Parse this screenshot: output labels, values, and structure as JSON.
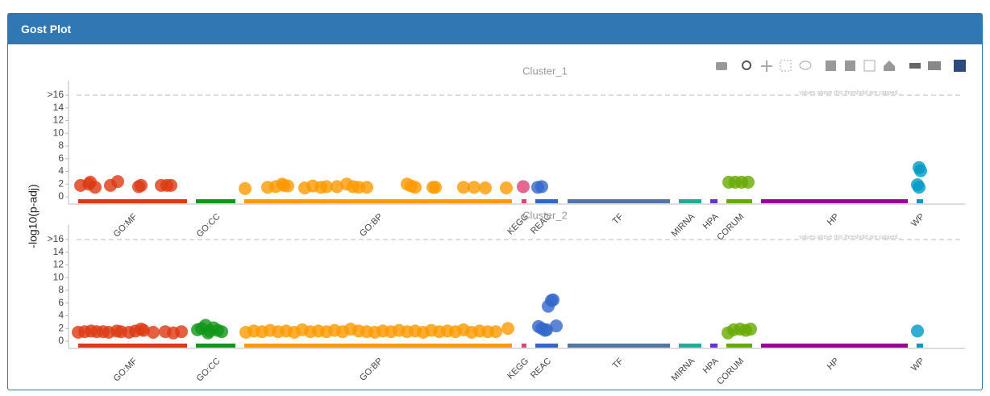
{
  "header": {
    "title": "Gost Plot"
  },
  "chart_data": [
    {
      "type": "manhattan",
      "title": "Cluster_1",
      "ylabel": "-log10(p-adj)",
      "threshold_label": "values above this threshold are capped...",
      "xlim": [
        0,
        1112
      ],
      "ylim": [
        -1.14,
        18.29
      ],
      "yticks": [
        0,
        2,
        4,
        6,
        8,
        10,
        12,
        14,
        {
          "value": 16,
          "label": ">16"
        }
      ],
      "sources": [
        {
          "name": "GO:MF",
          "color": "#dc3912",
          "range": [
            12,
            147
          ],
          "x": [
            15,
            25,
            33,
            27,
            52,
            61,
            87,
            90,
            115,
            122,
            127
          ],
          "values": [
            1.8,
            2,
            1.5,
            2.3,
            1.8,
            2.4,
            1.6,
            1.8,
            1.8,
            1.8,
            1.8
          ]
        },
        {
          "name": "GO:CC",
          "color": "#109618",
          "range": [
            158,
            207
          ],
          "x": [],
          "values": []
        },
        {
          "name": "GO:BP",
          "color": "#ff9900",
          "range": [
            218,
            550
          ],
          "x": [
            219,
            247,
            257,
            265,
            267,
            272,
            293,
            303,
            313,
            320,
            333,
            345,
            353,
            360,
            370,
            420,
            425,
            430,
            452,
            455,
            490,
            503,
            517,
            543
          ],
          "values": [
            1.3,
            1.5,
            1.6,
            2,
            1.8,
            1.7,
            1.4,
            1.7,
            1.5,
            1.6,
            1.6,
            2,
            1.6,
            1.5,
            1.5,
            2,
            1.7,
            1.5,
            1.5,
            1.5,
            1.5,
            1.5,
            1.4,
            1.4
          ]
        },
        {
          "name": "KEGG",
          "color": "#dd4477",
          "range": [
            562,
            568
          ],
          "x": [
            564
          ],
          "values": [
            1.6
          ]
        },
        {
          "name": "REAC",
          "color": "#3366cc",
          "range": [
            579,
            607
          ],
          "x": [
            582,
            587
          ],
          "values": [
            1.5,
            1.6
          ]
        },
        {
          "name": "TF",
          "color": "#5574a6",
          "range": [
            619,
            746
          ],
          "x": [],
          "values": []
        },
        {
          "name": "MIRNA",
          "color": "#22aa99",
          "range": [
            757,
            785
          ],
          "x": [],
          "values": []
        },
        {
          "name": "HPA",
          "color": "#6633cc",
          "range": [
            796,
            805
          ],
          "x": [],
          "values": []
        },
        {
          "name": "CORUM",
          "color": "#66aa00",
          "range": [
            816,
            848
          ],
          "x": [
            819,
            827,
            835,
            843
          ],
          "values": [
            2.3,
            2.3,
            2.3,
            2.3
          ]
        },
        {
          "name": "HP",
          "color": "#990099",
          "range": [
            859,
            1041
          ],
          "x": [],
          "values": []
        },
        {
          "name": "WP",
          "color": "#0099c6",
          "range": [
            1052,
            1060
          ],
          "x": [
            1055,
            1057,
            1053,
            1055
          ],
          "values": [
            4.6,
            4.1,
            1.9,
            1.5
          ]
        }
      ]
    },
    {
      "type": "manhattan",
      "title": "Cluster_2",
      "threshold_label": "values above this threshold are capped...",
      "xlim": [
        0,
        1112
      ],
      "ylim": [
        -1.14,
        18.29
      ],
      "yticks": [
        0,
        2,
        4,
        6,
        8,
        10,
        12,
        14,
        {
          "value": 16,
          "label": ">16"
        }
      ],
      "sources": [
        {
          "name": "GO:MF",
          "color": "#dc3912",
          "range": [
            12,
            147
          ],
          "x": [
            12,
            20,
            28,
            35,
            43,
            50,
            60,
            65,
            75,
            83,
            90,
            93,
            105,
            120,
            130,
            140
          ],
          "values": [
            1.4,
            1.5,
            1.6,
            1.5,
            1.5,
            1.4,
            1.6,
            1.5,
            1.4,
            1.6,
            1.9,
            1.7,
            1.4,
            1.5,
            1.3,
            1.5
          ]
        },
        {
          "name": "GO:CC",
          "color": "#109618",
          "range": [
            158,
            207
          ],
          "x": [
            160,
            165,
            170,
            175,
            180,
            185,
            190,
            173
          ],
          "values": [
            1.8,
            2,
            2.5,
            1.6,
            2.1,
            1.7,
            1.5,
            1.3
          ]
        },
        {
          "name": "GO:BP",
          "color": "#ff9900",
          "range": [
            218,
            550
          ],
          "x": [
            220,
            230,
            240,
            250,
            260,
            270,
            280,
            290,
            300,
            310,
            320,
            330,
            340,
            350,
            360,
            370,
            380,
            390,
            400,
            410,
            420,
            430,
            440,
            450,
            460,
            470,
            480,
            490,
            500,
            510,
            520,
            530,
            545
          ],
          "values": [
            1.4,
            1.6,
            1.5,
            1.7,
            1.5,
            1.6,
            1.4,
            1.8,
            1.5,
            1.6,
            1.5,
            1.7,
            1.5,
            1.9,
            1.6,
            1.5,
            1.4,
            1.6,
            1.5,
            1.7,
            1.5,
            1.6,
            1.4,
            1.7,
            1.5,
            1.6,
            1.5,
            1.8,
            1.4,
            1.6,
            1.5,
            1.5,
            2
          ]
        },
        {
          "name": "KEGG",
          "color": "#dd4477",
          "range": [
            562,
            568
          ],
          "x": [],
          "values": []
        },
        {
          "name": "REAC",
          "color": "#3366cc",
          "range": [
            579,
            607
          ],
          "x": [
            583,
            587,
            591,
            595,
            599,
            601,
            605,
            593
          ],
          "values": [
            2.3,
            2,
            1.7,
            5.5,
            6.4,
            6.5,
            2.4,
            1.8
          ]
        },
        {
          "name": "TF",
          "color": "#5574a6",
          "range": [
            619,
            746
          ],
          "x": [],
          "values": []
        },
        {
          "name": "MIRNA",
          "color": "#22aa99",
          "range": [
            757,
            785
          ],
          "x": [],
          "values": []
        },
        {
          "name": "HPA",
          "color": "#6633cc",
          "range": [
            796,
            805
          ],
          "x": [],
          "values": []
        },
        {
          "name": "CORUM",
          "color": "#66aa00",
          "range": [
            816,
            848
          ],
          "x": [
            818,
            825,
            833,
            840,
            846
          ],
          "values": [
            1.3,
            1.8,
            1.9,
            1.7,
            1.9
          ]
        },
        {
          "name": "HP",
          "color": "#990099",
          "range": [
            859,
            1041
          ],
          "x": [],
          "values": []
        },
        {
          "name": "WP",
          "color": "#0099c6",
          "range": [
            1052,
            1060
          ],
          "x": [
            1053
          ],
          "values": [
            1.6
          ]
        }
      ]
    }
  ]
}
